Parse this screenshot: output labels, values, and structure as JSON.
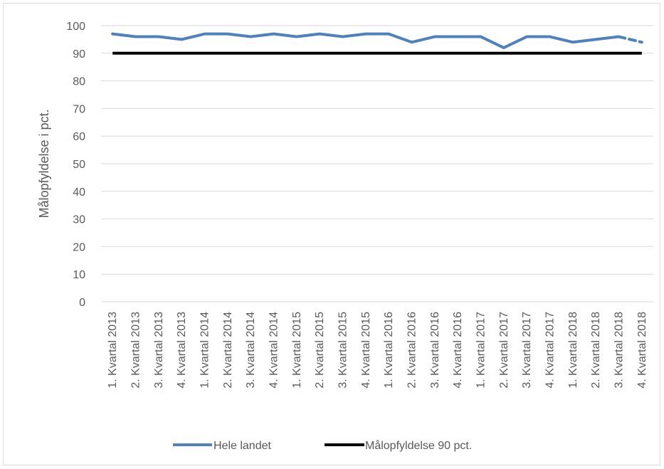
{
  "chart_data": {
    "type": "line",
    "title": "",
    "xlabel": "",
    "ylabel": "Målopfyldelse i pct.",
    "ylim": [
      0,
      100
    ],
    "yticks": [
      0,
      10,
      20,
      30,
      40,
      50,
      60,
      70,
      80,
      90,
      100
    ],
    "grid": true,
    "legend_position": "bottom",
    "categories": [
      "1. Kvartal 2013",
      "2. Kvartal 2013",
      "3. Kvartal 2013",
      "4. Kvartal 2013",
      "1. Kvartal 2014",
      "2. Kvartal 2014",
      "3. Kvartal 2014",
      "4. Kvartal 2014",
      "1. Kvartal 2015",
      "2. Kvartal 2015",
      "3. Kvartal 2015",
      "4. Kvartal 2015",
      "1. Kvartal 2016",
      "2. Kvartal 2016",
      "3. Kvartal 2016",
      "4. Kvartal 2016",
      "1. Kvartal 2017",
      "2. Kvartal 2017",
      "3. Kvartal 2017",
      "4. Kvartal 2017",
      "1. Kvartal 2018",
      "2. Kvartal 2018",
      "3. Kvartal 2018",
      "4. Kvartal 2018"
    ],
    "series": [
      {
        "name": "Hele landet",
        "color": "#4f81bd",
        "values": [
          97,
          96,
          96,
          95,
          97,
          97,
          96,
          97,
          96,
          97,
          96,
          97,
          97,
          94,
          96,
          96,
          96,
          92,
          96,
          96,
          94,
          95,
          96,
          94
        ],
        "dashed_last_segment": true
      },
      {
        "name": "Målopfyldelse 90 pct.",
        "color": "#000000",
        "values": [
          90,
          90,
          90,
          90,
          90,
          90,
          90,
          90,
          90,
          90,
          90,
          90,
          90,
          90,
          90,
          90,
          90,
          90,
          90,
          90,
          90,
          90,
          90,
          90
        ]
      }
    ]
  }
}
